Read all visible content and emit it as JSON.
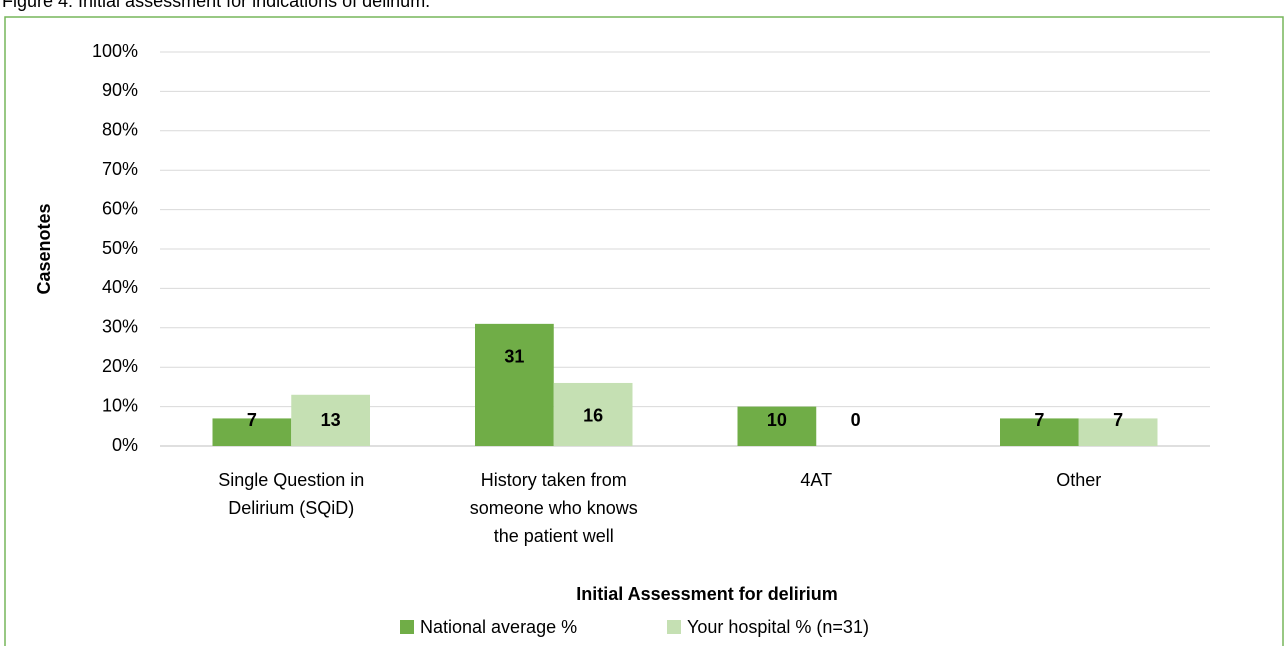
{
  "chart_data": {
    "type": "bar",
    "title": "Figure 4: Initial assessment for indications of delirium.",
    "x_label": "Initial Assessment for delirium",
    "y_label": "Casenotes",
    "categories": [
      "Single Question in Delirium (SQiD)",
      "History taken from someone who knows the patient well",
      "4AT",
      "Other"
    ],
    "series": [
      {
        "name": "National average %",
        "color": "#70ad47",
        "values": [
          7,
          31,
          10,
          7
        ]
      },
      {
        "name": "Your hospital % (n=31)",
        "color": "#c5e0b3",
        "values": [
          13,
          16,
          0,
          7
        ]
      }
    ],
    "ylim": [
      0,
      100
    ],
    "yticks": [
      {
        "value": 0,
        "label": "0%"
      },
      {
        "value": 10,
        "label": "10%"
      },
      {
        "value": 20,
        "label": "20%"
      },
      {
        "value": 30,
        "label": "30%"
      },
      {
        "value": 40,
        "label": "40%"
      },
      {
        "value": 50,
        "label": "50%"
      },
      {
        "value": 60,
        "label": "60%"
      },
      {
        "value": 70,
        "label": "70%"
      },
      {
        "value": 80,
        "label": "80%"
      },
      {
        "value": 90,
        "label": "90%"
      },
      {
        "value": 100,
        "label": "100%"
      }
    ],
    "grid": true,
    "legend": "bottom"
  }
}
